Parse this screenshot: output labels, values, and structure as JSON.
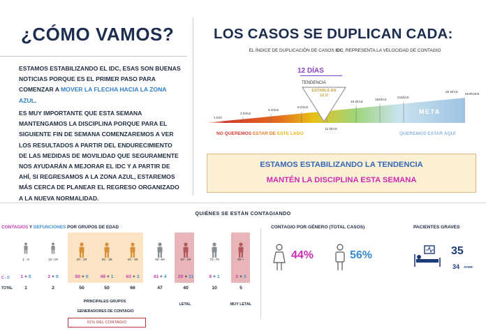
{
  "left": {
    "heading": "¿CÓMO VAMOS?",
    "para1_a": "ESTAMOS ESTABILIZANDO EL IDC, ESAS SON BUENAS NOTICIAS PORQUE ES EL PRIMER PASO PARA COMENZAR A ",
    "para1_link": "MOVER LA FLECHA HACIA LA ZONA AZUL",
    "para1_b": ".",
    "para2": "ES MUY IMPORTANTE QUE ESTA SEMANA MANTENGAMOS LA DISCIPLINA  PORQUE PARA EL SIGUIENTE FIN DE SEMANA COMENZAREMOS A VER LOS RESULTADOS A PARTIR DEL ENDURECIMIENTO DE LAS MEDIDAS DE MOVILIDAD QUE SEGURAMENTE NOS AYUDARÁN A MEJORAR EL IDC Y A PARTIR DE AHÍ, SI REGRESAMOS A LA ZONA AZUL, ESTAREMOS MÁS CERCA DE PLANEAR EL REGRESO ORGANIZADO A LA NUEVA NORMALIDAD."
  },
  "right": {
    "heading": "LOS CASOS SE DUPLICAN CADA:",
    "subtitle_a": "EL ÍNDICE DE DUPLICACIÓN DE CASOS ",
    "subtitle_b": "IDC",
    "subtitle_c": ", REPRESENTA LA VELOCIDAD DE CONTAGIO",
    "range_label": "12 DÍAS",
    "tendencia": "TENDENCIA",
    "stable_label": "ESTABLE EN 12 D",
    "ticks": [
      "1 DÍA",
      "3 DÍAS",
      "6 DÍAS",
      "9 DÍAS",
      "12 DÍAS",
      "15 DÍAS",
      "18DÍAS",
      "21DÍAS",
      "30 DÍAS"
    ],
    "meta": "META",
    "margen": "MARGEN",
    "no_quiere_a": "NO QUEREMOS ",
    "no_quiere_b": "ESTAR DE ",
    "no_quiere_c": "ESTE LADO",
    "si_quiere": "QUEREMOS ESTAR AQUÍ",
    "box_line1": "ESTAMOS ESTABILIZANDO LA TENDENCIA",
    "box_line2": "MANTÉN LA DISCIPLINA ESTA SEMANA",
    "colors": {
      "red": "#d2392b",
      "yellow": "#e8c117",
      "green": "#9fd57a",
      "blue": "#9ec3e2",
      "magenta": "#d02ab0"
    }
  },
  "bottom": {
    "title": "QUIÉNES SE ESTÁN CONTAGIANDO",
    "age_title_1": "CONTAGIOS",
    "age_title_2": " Y ",
    "age_title_3": "DEFUNCIONES",
    "age_title_4": " POR GRUPOS DE EDAD",
    "row_cd_c": "C",
    "row_cd_sep": " - ",
    "row_cd_d": "D",
    "row_total": "TOTAL",
    "groups": [
      {
        "age": "1 - 9",
        "c": "1",
        "d": "0",
        "total": "1"
      },
      {
        "age": "10 -19",
        "c": "2",
        "d": "0",
        "total": "2"
      },
      {
        "age": "20 - 29",
        "c": "50",
        "d": "0",
        "total": "50"
      },
      {
        "age": "30 - 39",
        "c": "49",
        "d": "1",
        "total": "50"
      },
      {
        "age": "40 - 49",
        "c": "63",
        "d": "3",
        "total": "66"
      },
      {
        "age": "50 -59",
        "c": "43",
        "d": "4",
        "total": "47"
      },
      {
        "age": "60 - 69",
        "c": "29",
        "d": "11",
        "total": "40"
      },
      {
        "age": "70 -79",
        "c": "9",
        "d": "1",
        "total": "10"
      },
      {
        "age": "80 +",
        "c": "2",
        "d": "3",
        "total": "5"
      }
    ],
    "principales": "PRINCIPALES GRUPOS",
    "generadores": "GENERADORES DE CONTAGIO",
    "letal": "LETAL",
    "muy_letal": "MUY LETAL",
    "pct_contagio": "61% DEL CONTAGIO",
    "genero_title": "CONTAGIO POR GÉNERO (TOTAL CASOS)",
    "pct_mujeres": "44%",
    "pct_hombres": "56%",
    "graves_title": "PACIENTES GRAVES",
    "graves_hoy": "35",
    "graves_ayer_val": "34",
    "graves_ayer_lbl": "AYER"
  }
}
